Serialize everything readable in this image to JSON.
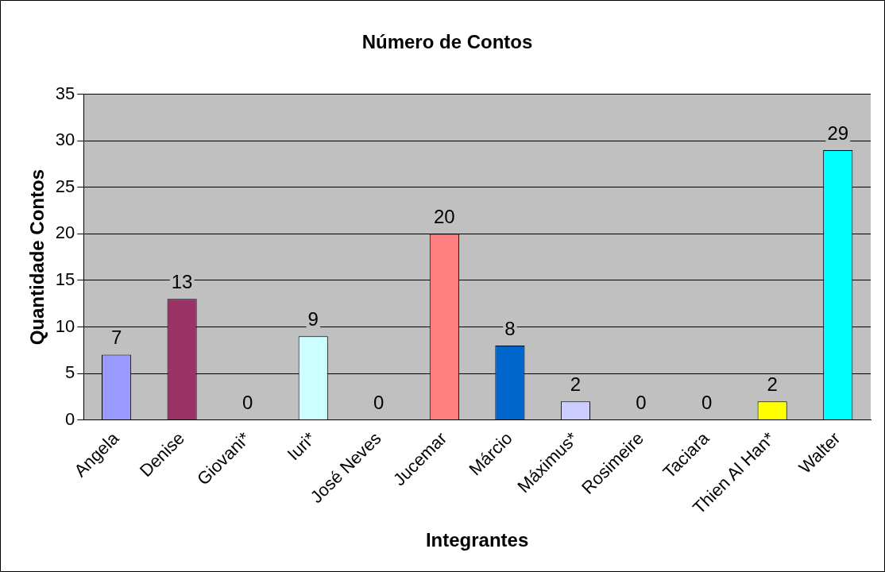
{
  "chart_data": {
    "type": "bar",
    "title": "Número de Contos",
    "xlabel": "Integrantes",
    "ylabel": "Quantidade Contos",
    "categories": [
      "Angela",
      "Denise",
      "Giovani*",
      "Iuri*",
      "José Neves",
      "Jucemar",
      "Márcio",
      "Máximus*",
      "Rosimeire",
      "Taciara",
      "Thien Al Han*",
      "Walter"
    ],
    "values": [
      7,
      13,
      0,
      9,
      0,
      20,
      8,
      2,
      0,
      0,
      2,
      29
    ],
    "colors": [
      "#9999ff",
      "#993366",
      "#ffffcc",
      "#ccffff",
      "#660066",
      "#ff8080",
      "#0066cc",
      "#ccccff",
      "#000080",
      "#ff00ff",
      "#ffff00",
      "#00ffff"
    ],
    "ylim": [
      0,
      35
    ],
    "yticks": [
      0,
      5,
      10,
      15,
      20,
      25,
      30,
      35
    ],
    "grid": "y",
    "legend": false,
    "data_labels": true
  }
}
